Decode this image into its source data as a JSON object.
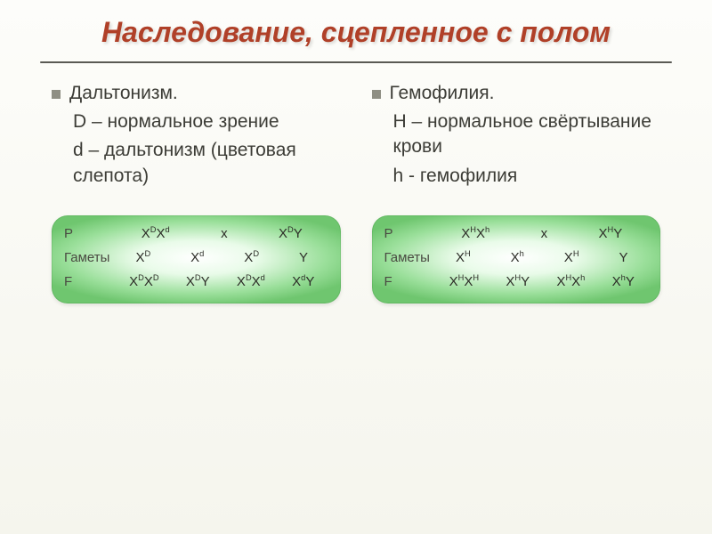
{
  "title": {
    "text": "Наследование, сцепленное с полом",
    "color": "#b04028",
    "fontsize": 32
  },
  "rule_color": "#5a5a54",
  "left": {
    "bullet": "Дальтонизм.",
    "lines": [
      "D – нормальное зрение",
      "d – дальтонизм (цветовая слепота)"
    ],
    "table": {
      "rows": [
        {
          "label": "P",
          "cells": [
            "X<sup>D</sup>X<sup>d</sup>",
            "x",
            "X<sup>D</sup>Y"
          ]
        },
        {
          "label": "Гаметы",
          "cells": [
            "X<sup>D</sup>",
            "X<sup>d</sup>",
            "X<sup>D</sup>",
            "Y"
          ]
        },
        {
          "label": "F",
          "cells": [
            "X<sup>D</sup>X<sup>D</sup>",
            "X<sup>D</sup>Y",
            "X<sup>D</sup>X<sup>d</sup>",
            "X<sup>d</sup>Y"
          ]
        }
      ]
    }
  },
  "right": {
    "bullet": "Гемофилия.",
    "lines": [
      "H – нормальное свёртывание крови",
      "h - гемофилия"
    ],
    "table": {
      "rows": [
        {
          "label": "P",
          "cells": [
            "X<sup>H</sup>X<sup>h</sup>",
            "x",
            "X<sup>H</sup>Y"
          ]
        },
        {
          "label": "Гаметы",
          "cells": [
            "X<sup>H</sup>",
            "X<sup>h</sup>",
            "X<sup>H</sup>",
            "Y"
          ]
        },
        {
          "label": "F",
          "cells": [
            "X<sup>H</sup>X<sup>H</sup>",
            "X<sup>H</sup>Y",
            "X<sup>H</sup>X<sup>h</sup>",
            "X<sup>h</sup>Y"
          ]
        }
      ]
    }
  },
  "style": {
    "body_fontsize": 21,
    "bullet_color": "#8f8f84",
    "text_color": "#3c3c36",
    "card_label_fontsize": 15,
    "card_cell_fontsize": 15
  }
}
